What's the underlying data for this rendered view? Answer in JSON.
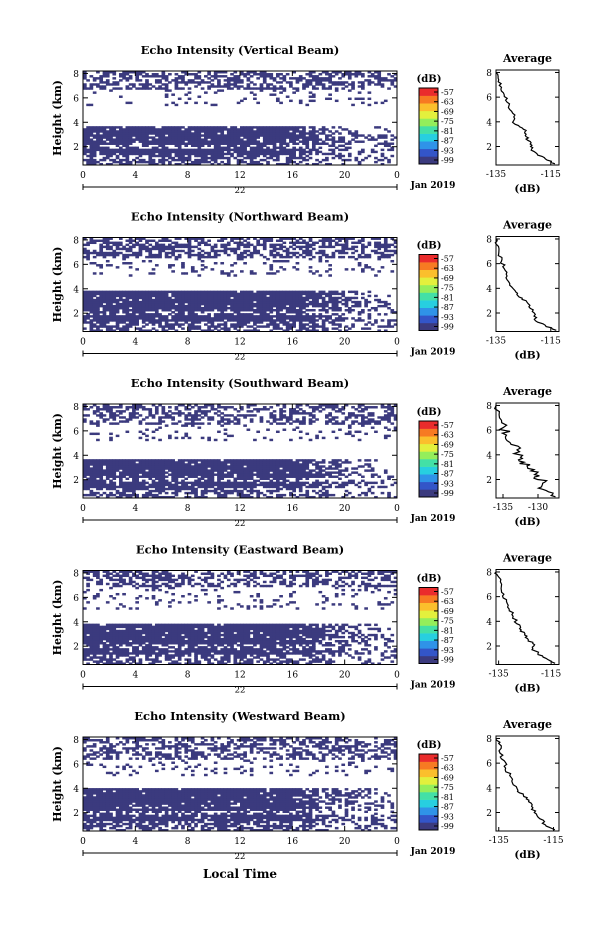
{
  "figure": {
    "xlabel": "Local Time",
    "height_label": "Height (km)",
    "date_label": "Jan 2019",
    "day_label": "22",
    "colorbar_unit": "(dB)",
    "colorbar_ticks": [
      "-57",
      "-63",
      "-69",
      "-75",
      "-81",
      "-87",
      "-93",
      "-99"
    ],
    "colormap": [
      "#3b3a7e",
      "#3355c8",
      "#2f93e8",
      "#27cfe0",
      "#43e0a6",
      "#94ee5b",
      "#e3f03d",
      "#fbbf2c",
      "#f77a22",
      "#ea2c2c"
    ],
    "echo_color": "#3b3a7e",
    "time_ticks": [
      "0",
      "4",
      "8",
      "12",
      "16",
      "20",
      "0"
    ],
    "height_ticks": [
      "2",
      "4",
      "6",
      "8"
    ],
    "average_title": "Average",
    "average_unit": "(dB)"
  },
  "chart_data": [
    {
      "type": "heatmap",
      "title": "Echo Intensity (Vertical Beam)",
      "xlabel": "",
      "ylabel": "Height (km)",
      "xlim": [
        0,
        24
      ],
      "ylim": [
        0.5,
        8.2
      ],
      "mask": {
        "upper_bottom": 6.7,
        "upper_density": 0.5,
        "sparse_bottom": 5.3,
        "sparse_top": 6.7,
        "sparse_density": 0.12,
        "band1": [
          1.3,
          3.1
        ],
        "band2": [
          3.0,
          3.7
        ],
        "band_fade_start": 15.5,
        "band_end": 23.5
      },
      "average": {
        "xlim": [
          -135,
          -112
        ],
        "xticks": [
          "-135",
          "-115"
        ],
        "yticks": [
          "2",
          "4",
          "6",
          "8"
        ],
        "profile": [
          [
            -113.5,
            0.6
          ],
          [
            -117,
            1.0
          ],
          [
            -120,
            1.4
          ],
          [
            -122,
            1.8
          ],
          [
            -122.5,
            2.2
          ],
          [
            -124,
            2.6
          ],
          [
            -124,
            3.0
          ],
          [
            -125,
            3.4
          ],
          [
            -128,
            3.8
          ],
          [
            -128.5,
            4.4
          ],
          [
            -130,
            5.0
          ],
          [
            -131,
            5.6
          ],
          [
            -132,
            6.2
          ],
          [
            -133,
            6.8
          ],
          [
            -134,
            7.4
          ],
          [
            -135,
            8.0
          ]
        ]
      }
    },
    {
      "type": "heatmap",
      "title": "Echo Intensity (Northward Beam)",
      "xlabel": "",
      "ylabel": "Height (km)",
      "xlim": [
        0,
        24
      ],
      "ylim": [
        0.5,
        8.2
      ],
      "mask": {
        "upper_bottom": 6.5,
        "upper_density": 0.55,
        "sparse_bottom": 5.0,
        "sparse_top": 6.5,
        "sparse_density": 0.15,
        "band1": [
          1.3,
          3.1
        ],
        "band2": [
          3.0,
          3.8
        ],
        "band_fade_start": 17.0,
        "band_end": 24.0
      },
      "average": {
        "xlim": [
          -135,
          -112
        ],
        "xticks": [
          "-135",
          "-115"
        ],
        "yticks": [
          "2",
          "4",
          "6",
          "8"
        ],
        "profile": [
          [
            -113,
            0.6
          ],
          [
            -117,
            1.0
          ],
          [
            -121,
            1.5
          ],
          [
            -121,
            2.0
          ],
          [
            -123,
            2.5
          ],
          [
            -124,
            3.0
          ],
          [
            -127,
            3.4
          ],
          [
            -128,
            3.8
          ],
          [
            -130,
            4.4
          ],
          [
            -131,
            5.0
          ],
          [
            -132,
            5.6
          ],
          [
            -133,
            6.2
          ],
          [
            -134,
            6.8
          ],
          [
            -135,
            7.6
          ],
          [
            -135,
            8.0
          ]
        ]
      }
    },
    {
      "type": "heatmap",
      "title": "Echo Intensity (Southward Beam)",
      "xlabel": "",
      "ylabel": "Height (km)",
      "xlim": [
        0,
        24
      ],
      "ylim": [
        0.5,
        8.2
      ],
      "mask": {
        "upper_bottom": 6.5,
        "upper_density": 0.45,
        "sparse_bottom": 5.2,
        "sparse_top": 6.5,
        "sparse_density": 0.12,
        "band1": [
          1.3,
          2.8
        ],
        "band2": [
          2.9,
          3.7
        ],
        "band_fade_start": 16.5,
        "band_end": 23.5
      },
      "average": {
        "xlim": [
          -136,
          -127
        ],
        "xticks": [
          "-135",
          "-130"
        ],
        "yticks": [
          "2",
          "4",
          "6",
          "8"
        ],
        "profile": [
          [
            -127.5,
            0.6
          ],
          [
            -128.5,
            1.0
          ],
          [
            -129.5,
            1.4
          ],
          [
            -129,
            1.8
          ],
          [
            -130.5,
            2.2
          ],
          [
            -130,
            2.6
          ],
          [
            -131.5,
            3.0
          ],
          [
            -132,
            3.4
          ],
          [
            -132.5,
            3.8
          ],
          [
            -133,
            4.4
          ],
          [
            -134,
            5.0
          ],
          [
            -134.5,
            5.6
          ],
          [
            -135,
            6.2
          ],
          [
            -135.5,
            7.0
          ],
          [
            -136,
            8.0
          ]
        ]
      }
    },
    {
      "type": "heatmap",
      "title": "Echo Intensity (Eastward Beam)",
      "xlabel": "",
      "ylabel": "Height (km)",
      "xlim": [
        0,
        24
      ],
      "ylim": [
        0.5,
        8.2
      ],
      "mask": {
        "upper_bottom": 6.8,
        "upper_density": 0.5,
        "sparse_bottom": 5.0,
        "sparse_top": 6.8,
        "sparse_density": 0.14,
        "band1": [
          1.3,
          3.0
        ],
        "band2": [
          3.0,
          3.9
        ],
        "band_fade_start": 17.0,
        "band_end": 24.0
      },
      "average": {
        "xlim": [
          -136,
          -112
        ],
        "xticks": [
          "-135",
          "-115"
        ],
        "yticks": [
          "2",
          "4",
          "6",
          "8"
        ],
        "profile": [
          [
            -113.5,
            0.6
          ],
          [
            -117,
            1.0
          ],
          [
            -120,
            1.4
          ],
          [
            -122,
            1.8
          ],
          [
            -122,
            2.2
          ],
          [
            -124,
            2.6
          ],
          [
            -125,
            3.0
          ],
          [
            -127,
            3.4
          ],
          [
            -128,
            3.8
          ],
          [
            -129.5,
            4.4
          ],
          [
            -131,
            5.0
          ],
          [
            -132,
            5.6
          ],
          [
            -133,
            6.2
          ],
          [
            -134,
            6.8
          ],
          [
            -135,
            7.6
          ],
          [
            -136,
            8.0
          ]
        ]
      }
    },
    {
      "type": "heatmap",
      "title": "Echo Intensity (Westward Beam)",
      "xlabel": "Local Time",
      "ylabel": "Height (km)",
      "xlim": [
        0,
        24
      ],
      "ylim": [
        0.5,
        8.2
      ],
      "mask": {
        "upper_bottom": 6.3,
        "upper_density": 0.45,
        "sparse_bottom": 5.0,
        "sparse_top": 6.3,
        "sparse_density": 0.12,
        "band1": [
          1.3,
          3.0
        ],
        "band2": [
          3.0,
          4.0
        ],
        "band_fade_start": 16.0,
        "band_end": 24.0
      },
      "average": {
        "xlim": [
          -136,
          -113
        ],
        "xticks": [
          "-135",
          "-115"
        ],
        "yticks": [
          "2",
          "4",
          "6",
          "8"
        ],
        "profile": [
          [
            -114.5,
            0.6
          ],
          [
            -118,
            1.0
          ],
          [
            -120,
            1.5
          ],
          [
            -122,
            2.0
          ],
          [
            -123,
            2.5
          ],
          [
            -124,
            3.0
          ],
          [
            -126,
            3.4
          ],
          [
            -128,
            3.8
          ],
          [
            -130,
            4.4
          ],
          [
            -131,
            5.0
          ],
          [
            -132.5,
            5.6
          ],
          [
            -133,
            6.2
          ],
          [
            -134.5,
            6.8
          ],
          [
            -135,
            7.6
          ],
          [
            -136,
            8.0
          ]
        ]
      }
    }
  ]
}
